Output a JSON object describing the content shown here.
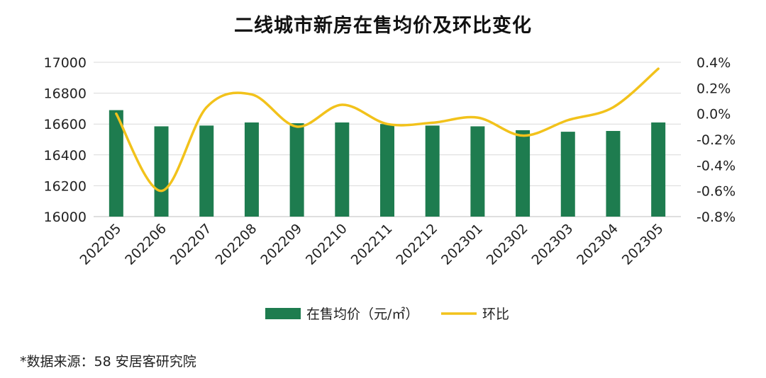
{
  "chart_data": {
    "type": "bar",
    "title": "二线城市新房在售均价及环比变化",
    "categories": [
      "202205",
      "202206",
      "202207",
      "202208",
      "202209",
      "202210",
      "202211",
      "202212",
      "202301",
      "202302",
      "202303",
      "202304",
      "202305"
    ],
    "series": [
      {
        "name": "在售均价（元/㎡）",
        "type": "bar",
        "axis": "left",
        "color": "#1E7C4F",
        "values": [
          16690,
          16585,
          16590,
          16610,
          16605,
          16610,
          16600,
          16590,
          16585,
          16560,
          16550,
          16555,
          16610
        ]
      },
      {
        "name": "环比",
        "type": "line",
        "axis": "right",
        "color": "#F2C21B",
        "unit": "%",
        "values": [
          0.0,
          -0.6,
          0.05,
          0.15,
          -0.1,
          0.07,
          -0.08,
          -0.07,
          -0.03,
          -0.17,
          -0.05,
          0.05,
          0.35
        ]
      }
    ],
    "y_left": {
      "min": 16000,
      "max": 17000,
      "step": 200,
      "tick_labels": [
        "16000",
        "16200",
        "16400",
        "16600",
        "16800",
        "17000"
      ]
    },
    "y_right": {
      "min": -0.8,
      "max": 0.4,
      "step": 0.2,
      "tick_labels": [
        "-0.8%",
        "-0.6%",
        "-0.4%",
        "-0.2%",
        "0.0%",
        "0.2%",
        "0.4%"
      ]
    },
    "grid": true,
    "legend": "bottom",
    "source": "*数据来源：58 安居客研究院"
  }
}
